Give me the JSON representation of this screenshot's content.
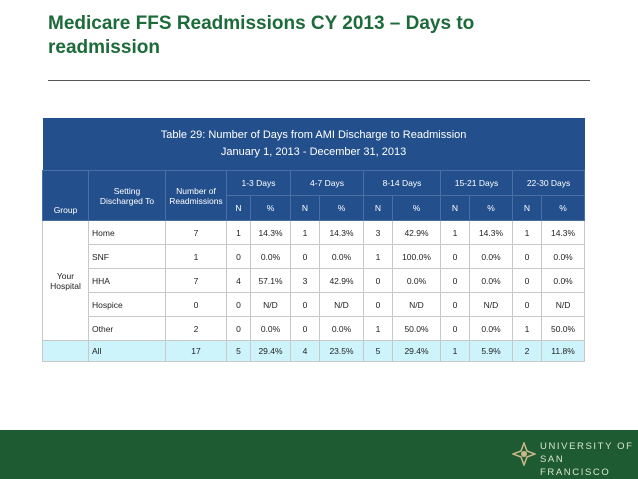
{
  "header": {
    "title": "Medicare FFS Readmissions CY 2013 – Days to readmission"
  },
  "table": {
    "caption": [
      "Table 29: Number of Days from AMI Discharge to Readmission",
      "January 1, 2013 - December 31, 2013"
    ],
    "group_header": "Group",
    "setting_header": [
      "Setting",
      "Discharged To"
    ],
    "number_header": [
      "Number of",
      "Readmissions"
    ],
    "day_groups": [
      "1-3 Days",
      "4-7 Days",
      "8-14 Days",
      "15-21 Days",
      "22-30 Days"
    ],
    "sub_headers": [
      "N",
      "%"
    ],
    "group_label": [
      "Your",
      "Hospital"
    ],
    "rows": [
      {
        "setting": "Home",
        "number": "7",
        "cells": [
          "1",
          "14.3%",
          "1",
          "14.3%",
          "3",
          "42.9%",
          "1",
          "14.3%",
          "1",
          "14.3%"
        ]
      },
      {
        "setting": "SNF",
        "number": "1",
        "cells": [
          "0",
          "0.0%",
          "0",
          "0.0%",
          "1",
          "100.0%",
          "0",
          "0.0%",
          "0",
          "0.0%"
        ]
      },
      {
        "setting": "HHA",
        "number": "7",
        "cells": [
          "4",
          "57.1%",
          "3",
          "42.9%",
          "0",
          "0.0%",
          "0",
          "0.0%",
          "0",
          "0.0%"
        ]
      },
      {
        "setting": "Hospice",
        "number": "0",
        "cells": [
          "0",
          "N/D",
          "0",
          "N/D",
          "0",
          "N/D",
          "0",
          "N/D",
          "0",
          "N/D"
        ]
      },
      {
        "setting": "Other",
        "number": "2",
        "cells": [
          "0",
          "0.0%",
          "0",
          "0.0%",
          "1",
          "50.0%",
          "0",
          "0.0%",
          "1",
          "50.0%"
        ]
      }
    ],
    "total": {
      "setting": "All",
      "number": "17",
      "cells": [
        "5",
        "29.4%",
        "4",
        "23.5%",
        "5",
        "29.4%",
        "1",
        "5.9%",
        "2",
        "11.8%"
      ]
    }
  },
  "footer": {
    "logo_lines": [
      "UNIVERSITY OF",
      "SAN FRANCISCO"
    ]
  }
}
